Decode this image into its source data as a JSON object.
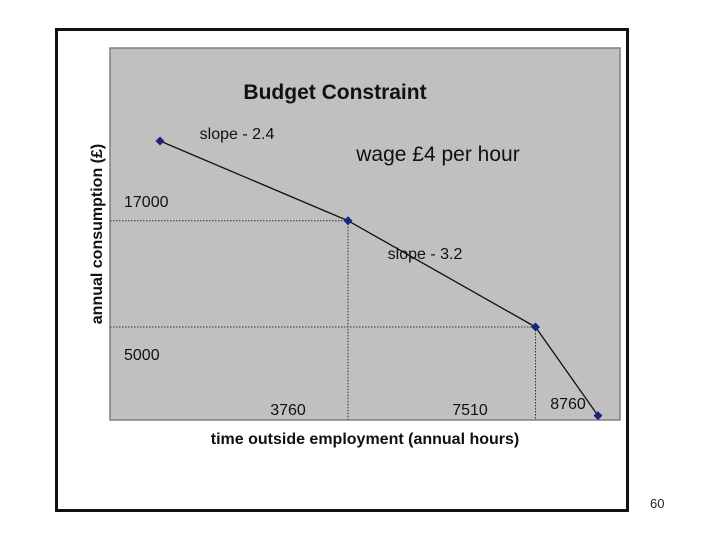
{
  "chart_data": {
    "type": "line",
    "title": "Budget Constraint",
    "xlabel": "time outside employment (annual hours)",
    "ylabel": "annual consumption (£)",
    "annotation": "wage £4 per hour",
    "segment_labels": [
      "slope - 2.4",
      "slope - 3.2"
    ],
    "xlim": [
      -1000,
      9200
    ],
    "ylim": [
      -5500,
      36500
    ],
    "points": [
      {
        "x": 0,
        "y": 26000
      },
      {
        "x": 3760,
        "y": 17000
      },
      {
        "x": 7510,
        "y": 5000
      },
      {
        "x": 8760,
        "y": -5000
      }
    ],
    "x_marks": [
      {
        "value": 3760,
        "label": "3760"
      },
      {
        "value": 7510,
        "label": "7510"
      },
      {
        "value": 8760,
        "label": "8760"
      }
    ],
    "y_marks": [
      {
        "value": 17000,
        "label": "17000"
      },
      {
        "value": 5000,
        "label": "5000"
      }
    ],
    "grid": false,
    "colors": {
      "plot_area": "#c0c0c0",
      "line": "#111111",
      "marker": "#1a237e"
    }
  },
  "slide_number": "60"
}
